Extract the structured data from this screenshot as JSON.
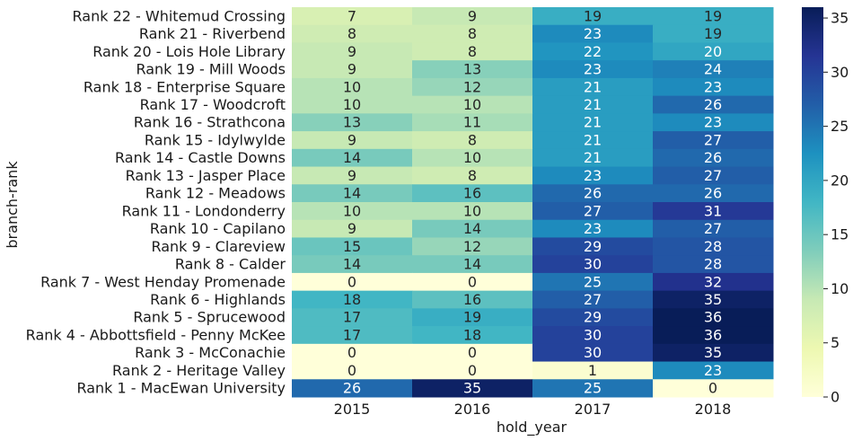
{
  "chart_data": {
    "type": "heatmap",
    "xlabel": "hold_year",
    "ylabel": "branch-rank",
    "columns": [
      "2015",
      "2016",
      "2017",
      "2018"
    ],
    "rows": [
      {
        "label": "Rank 22 - Whitemud Crossing",
        "values": [
          7,
          9,
          19,
          19
        ]
      },
      {
        "label": "Rank 21 - Riverbend",
        "values": [
          8,
          8,
          23,
          19
        ]
      },
      {
        "label": "Rank 20 - Lois Hole Library",
        "values": [
          9,
          8,
          22,
          20
        ]
      },
      {
        "label": "Rank 19 - Mill Woods",
        "values": [
          9,
          13,
          23,
          24
        ]
      },
      {
        "label": "Rank 18 - Enterprise Square",
        "values": [
          10,
          12,
          21,
          23
        ]
      },
      {
        "label": "Rank 17 - Woodcroft",
        "values": [
          10,
          10,
          21,
          26
        ]
      },
      {
        "label": "Rank 16 - Strathcona",
        "values": [
          13,
          11,
          21,
          23
        ]
      },
      {
        "label": "Rank 15 - Idylwylde",
        "values": [
          9,
          8,
          21,
          27
        ]
      },
      {
        "label": "Rank 14 - Castle Downs",
        "values": [
          14,
          10,
          21,
          26
        ]
      },
      {
        "label": "Rank 13 - Jasper Place",
        "values": [
          9,
          8,
          23,
          27
        ]
      },
      {
        "label": "Rank 12 - Meadows",
        "values": [
          14,
          16,
          26,
          26
        ]
      },
      {
        "label": "Rank 11 - Londonderry",
        "values": [
          10,
          10,
          27,
          31
        ]
      },
      {
        "label": "Rank 10 - Capilano",
        "values": [
          9,
          14,
          23,
          27
        ]
      },
      {
        "label": "Rank 9 - Clareview",
        "values": [
          15,
          12,
          29,
          28
        ]
      },
      {
        "label": "Rank 8 - Calder",
        "values": [
          14,
          14,
          30,
          28
        ]
      },
      {
        "label": "Rank 7 - West Henday Promenade",
        "values": [
          0,
          0,
          25,
          32
        ]
      },
      {
        "label": "Rank 6 - Highlands",
        "values": [
          18,
          16,
          27,
          35
        ]
      },
      {
        "label": "Rank 5 - Sprucewood",
        "values": [
          17,
          19,
          29,
          36
        ]
      },
      {
        "label": "Rank 4 - Abbottsfield - Penny McKee",
        "values": [
          17,
          18,
          30,
          36
        ]
      },
      {
        "label": "Rank 3 - McConachie",
        "values": [
          0,
          0,
          30,
          35
        ]
      },
      {
        "label": "Rank 2 - Heritage Valley",
        "values": [
          0,
          0,
          1,
          23
        ]
      },
      {
        "label": "Rank 1 - MacEwan University",
        "values": [
          26,
          35,
          25,
          0
        ]
      }
    ],
    "colormap": "YlGnBu",
    "vmin": 0,
    "vmax": 36,
    "colorbar_ticks": [
      0,
      5,
      10,
      15,
      20,
      25,
      30,
      35
    ],
    "annotate": true,
    "grid": false
  }
}
